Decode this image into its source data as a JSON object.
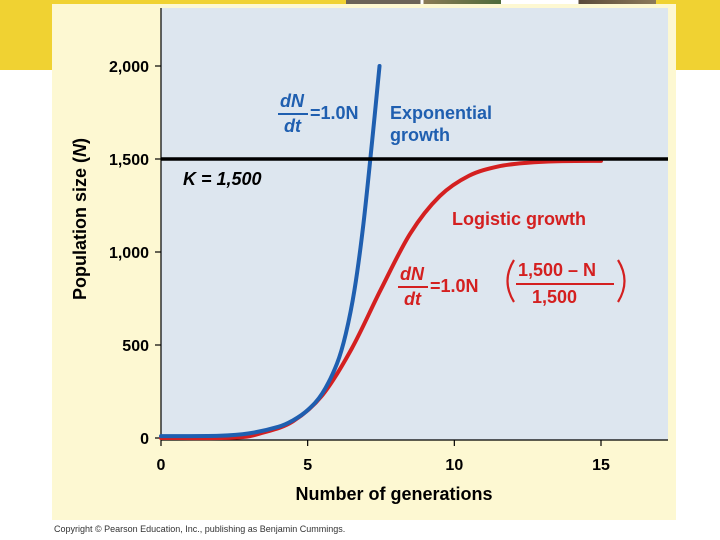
{
  "colors": {
    "band": "#f0d232",
    "panel": "#fdf8d2",
    "plot_bg": "#dde6ef",
    "exponential": "#1f5fb0",
    "logistic": "#d42020",
    "capacity": "#000000"
  },
  "chart_data": {
    "type": "line",
    "xlabel": "Number of generations",
    "ylabel_prefix": "Population size (",
    "ylabel_var": "N",
    "ylabel_suffix": ")",
    "xlim": [
      0,
      17.5
    ],
    "ylim": [
      0,
      2300
    ],
    "x_ticks": [
      0,
      5,
      10,
      15
    ],
    "y_ticks": [
      0,
      500,
      1000,
      1500,
      2000
    ],
    "x_tick_labels": [
      "0",
      "5",
      "10",
      "15"
    ],
    "y_tick_labels": [
      "0",
      "500",
      "1,000",
      "1,500",
      "2,000"
    ],
    "grid": false,
    "series": [
      {
        "name": "Exponential growth",
        "x": [
          0,
          2.0,
          3.0,
          4.0,
          4.5,
          5.0,
          5.5,
          6.0,
          6.3,
          6.6,
          6.9,
          7.2,
          7.45
        ],
        "y": [
          10,
          12,
          25,
          60,
          95,
          150,
          240,
          400,
          560,
          800,
          1150,
          1600,
          2000
        ]
      },
      {
        "name": "Logistic growth",
        "x": [
          0,
          2.5,
          3.5,
          4.5,
          5.5,
          6.5,
          7.5,
          8.5,
          9.5,
          10.5,
          11.5,
          12.5,
          13.5,
          15
        ],
        "y": [
          0,
          2,
          30,
          90,
          230,
          480,
          800,
          1100,
          1300,
          1410,
          1460,
          1480,
          1488,
          1490
        ]
      }
    ],
    "reference_line": {
      "y": 1500,
      "label": "K = 1,500"
    },
    "annotations": {
      "exp_label_1": "Exponential",
      "exp_label_2": "growth",
      "exp_eq_num": "dN",
      "exp_eq_den": "dt",
      "exp_eq_rhs": "=1.0N",
      "log_label": "Logistic growth",
      "log_eq_num": "dN",
      "log_eq_den": "dt",
      "log_eq_mid": "=1.0N",
      "log_frac_num": "1,500 – N",
      "log_frac_den": "1,500"
    }
  },
  "copyright": "Copyright © Pearson Education, Inc., publishing as Benjamin Cummings."
}
